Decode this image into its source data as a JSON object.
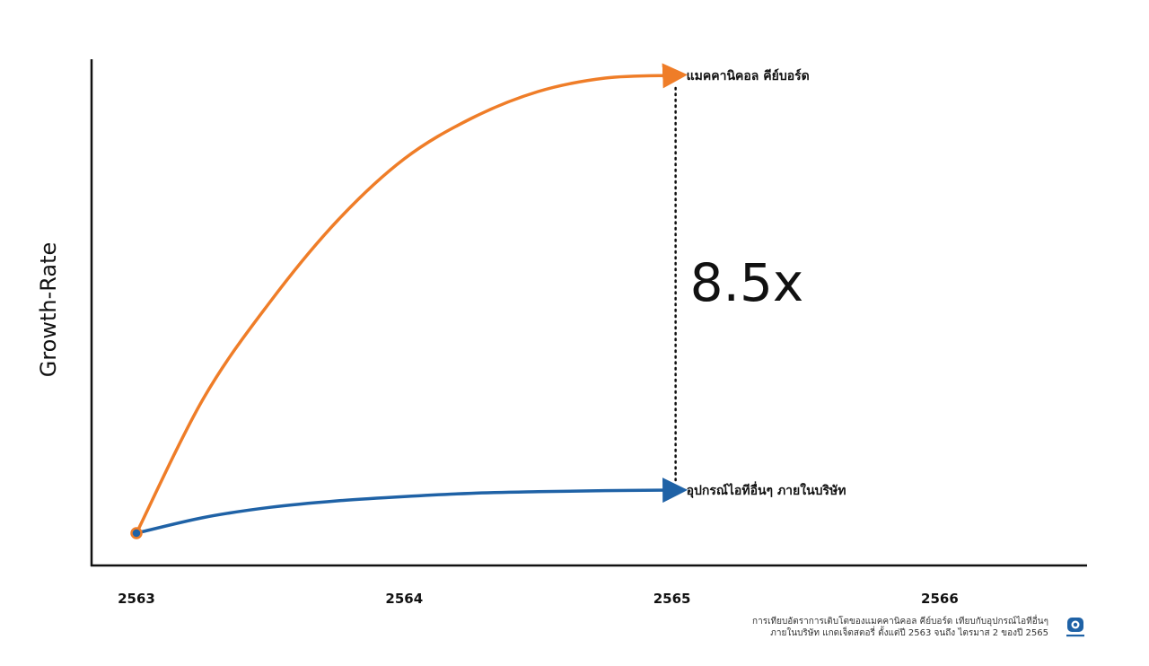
{
  "chart_data": {
    "type": "line",
    "ylabel": "Growth-Rate",
    "xlabel": "",
    "x_ticks": [
      "2563",
      "2564",
      "2565",
      "2566"
    ],
    "xlim": [
      2563,
      2566.55
    ],
    "ylim": [
      0,
      9.4
    ],
    "grid": false,
    "legend": "none",
    "series": [
      {
        "name": "แมคคานิคอล คีย์บอร์ด",
        "color": "#ef7d28",
        "x": [
          2563,
          2563.25,
          2563.5,
          2563.75,
          2564,
          2564.25,
          2564.5,
          2564.75,
          2565
        ],
        "y": [
          0.6,
          3.1,
          4.9,
          6.4,
          7.55,
          8.3,
          8.8,
          9.05,
          9.1
        ]
      },
      {
        "name": "อุปกรณ์ไอทีอื่นๆ ภายในบริษัท",
        "color": "#1f62a6",
        "x": [
          2563,
          2563.25,
          2563.5,
          2563.75,
          2564,
          2564.25,
          2564.5,
          2564.75,
          2565
        ],
        "y": [
          0.6,
          0.89,
          1.08,
          1.2,
          1.28,
          1.34,
          1.37,
          1.39,
          1.4
        ]
      }
    ],
    "annotation": {
      "text": "8.5x",
      "x": 2565
    }
  },
  "footnote": {
    "line1": "การเทียบอัตราการเติบโตของแมคคานิคอล คีย์บอร์ด เทียบกับอุปกรณ์ไอทีอื่นๆ",
    "line2": "ภายในบริษัท แกดเจ็ตสตอรี่ ตั้งแต่ปี 2563 จนถึง ไตรมาส 2 ของปี 2565"
  },
  "logo": {
    "icon": "gadget-story-logo-icon",
    "color": "#1f62a6"
  }
}
